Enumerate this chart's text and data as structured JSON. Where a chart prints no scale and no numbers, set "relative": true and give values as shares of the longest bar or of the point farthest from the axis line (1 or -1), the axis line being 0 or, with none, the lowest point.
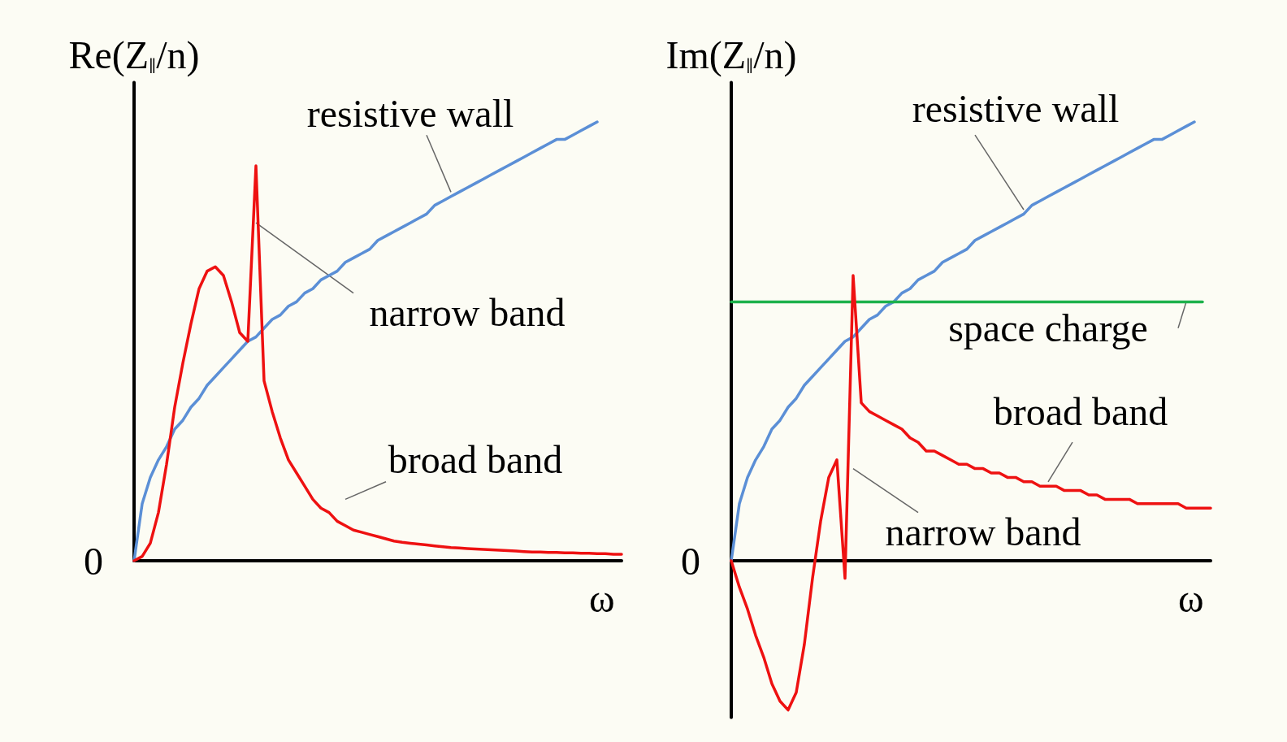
{
  "chart_data": [
    {
      "type": "line",
      "ylabel": "Re(Z$_{∥}$/n)",
      "xlabel": "ω",
      "relative": true,
      "legend": false,
      "grid": false,
      "marker": "none",
      "line_style": "solid",
      "categories": [
        null,
        null,
        null,
        null,
        null,
        null,
        null,
        null,
        null,
        null,
        null,
        null,
        null,
        null,
        null,
        null,
        null,
        null,
        null,
        null,
        null,
        null,
        null,
        null,
        null,
        null,
        null,
        null,
        null,
        null,
        null,
        null,
        null,
        null,
        null,
        null,
        null,
        null,
        null,
        null,
        null,
        null,
        null,
        null,
        null,
        null,
        null,
        null,
        null,
        null,
        null,
        null,
        null,
        null,
        null,
        null,
        null,
        null,
        null,
        null,
        null
      ],
      "series": [
        {
          "name": "resistive wall",
          "color": "#5b8fd6",
          "values": [
            0,
            0.13,
            0.19,
            0.23,
            0.26,
            0.3,
            0.32,
            0.35,
            0.37,
            0.4,
            0.42,
            0.44,
            0.46,
            0.48,
            0.5,
            0.51,
            0.53,
            0.55,
            0.56,
            0.58,
            0.59,
            0.61,
            0.62,
            0.64,
            0.65,
            0.66,
            0.68,
            0.69,
            0.7,
            0.71,
            0.73,
            0.74,
            0.75,
            0.76,
            0.77,
            0.78,
            0.79,
            0.81,
            0.82,
            0.83,
            0.84,
            0.85,
            0.86,
            0.87,
            0.88,
            0.89,
            0.9,
            0.91,
            0.92,
            0.93,
            0.94,
            0.95,
            0.96,
            0.96,
            0.97,
            0.98,
            0.99,
            1,
            null,
            null,
            null
          ]
        },
        {
          "color": "#ee1111",
          "values": [
            0,
            0.01,
            0.04,
            0.11,
            0.22,
            0.35,
            0.45,
            0.54,
            0.62,
            0.66,
            0.67,
            0.65,
            0.59,
            0.52,
            0.5,
            0.9,
            0.41,
            0.34,
            0.28,
            0.23,
            0.2,
            0.17,
            0.14,
            0.12,
            0.11,
            0.09,
            0.08,
            0.07,
            0.065,
            0.06,
            0.055,
            0.05,
            0.045,
            0.042,
            0.04,
            0.038,
            0.036,
            0.034,
            0.032,
            0.03,
            0.029,
            0.028,
            0.027,
            0.026,
            0.025,
            0.024,
            0.023,
            0.022,
            0.021,
            0.02,
            0.02,
            0.019,
            0.019,
            0.018,
            0.018,
            0.017,
            0.017,
            0.016,
            0.016,
            0.015,
            0.015
          ]
        }
      ],
      "annotations": [
        "narrow band",
        "broad band",
        "0"
      ]
    },
    {
      "type": "line",
      "ylabel": "Im(Z$_{∥}$/n)",
      "xlabel": "ω",
      "relative": true,
      "legend": false,
      "grid": false,
      "marker": "none",
      "line_style": "solid",
      "categories": [
        null,
        null,
        null,
        null,
        null,
        null,
        null,
        null,
        null,
        null,
        null,
        null,
        null,
        null,
        null,
        null,
        null,
        null,
        null,
        null,
        null,
        null,
        null,
        null,
        null,
        null,
        null,
        null,
        null,
        null,
        null,
        null,
        null,
        null,
        null,
        null,
        null,
        null,
        null,
        null,
        null,
        null,
        null,
        null,
        null,
        null,
        null,
        null,
        null,
        null,
        null,
        null,
        null,
        null,
        null,
        null,
        null,
        null,
        null,
        null
      ],
      "series": [
        {
          "name": "resistive wall",
          "color": "#5b8fd6",
          "values": [
            0,
            0.13,
            0.19,
            0.23,
            0.26,
            0.3,
            0.32,
            0.35,
            0.37,
            0.4,
            0.42,
            0.44,
            0.46,
            0.48,
            0.5,
            0.51,
            0.53,
            0.55,
            0.56,
            0.58,
            0.59,
            0.61,
            0.62,
            0.64,
            0.65,
            0.66,
            0.68,
            0.69,
            0.7,
            0.71,
            0.73,
            0.74,
            0.75,
            0.76,
            0.77,
            0.78,
            0.79,
            0.81,
            0.82,
            0.83,
            0.84,
            0.85,
            0.86,
            0.87,
            0.88,
            0.89,
            0.9,
            0.91,
            0.92,
            0.93,
            0.94,
            0.95,
            0.96,
            0.96,
            0.97,
            0.98,
            0.99,
            1,
            null,
            null
          ]
        },
        {
          "name": "space charge",
          "color": "#1db14b",
          "values": [
            0.59,
            0.59,
            0.59,
            0.59,
            0.59,
            0.59,
            0.59,
            0.59,
            0.59,
            0.59,
            0.59,
            0.59,
            0.59,
            0.59,
            0.59,
            0.59,
            0.59,
            0.59,
            0.59,
            0.59,
            0.59,
            0.59,
            0.59,
            0.59,
            0.59,
            0.59,
            0.59,
            0.59,
            0.59,
            0.59,
            0.59,
            0.59,
            0.59,
            0.59,
            0.59,
            0.59,
            0.59,
            0.59,
            0.59,
            0.59,
            0.59,
            0.59,
            0.59,
            0.59,
            0.59,
            0.59,
            0.59,
            0.59,
            0.59,
            0.59,
            0.59,
            0.59,
            0.59,
            0.59,
            0.59,
            0.59,
            0.59,
            0.59,
            0.59,
            null
          ]
        },
        {
          "color": "#ee1111",
          "values": [
            0,
            -0.06,
            -0.11,
            -0.17,
            -0.22,
            -0.28,
            -0.32,
            -0.34,
            -0.3,
            -0.19,
            -0.04,
            0.09,
            0.19,
            0.23,
            -0.04,
            0.65,
            0.36,
            0.34,
            0.33,
            0.32,
            0.31,
            0.3,
            0.28,
            0.27,
            0.25,
            0.25,
            0.24,
            0.23,
            0.22,
            0.22,
            0.21,
            0.21,
            0.2,
            0.2,
            0.19,
            0.19,
            0.18,
            0.18,
            0.17,
            0.17,
            0.17,
            0.16,
            0.16,
            0.16,
            0.15,
            0.15,
            0.14,
            0.14,
            0.14,
            0.14,
            0.13,
            0.13,
            0.13,
            0.13,
            0.13,
            0.13,
            0.12,
            0.12,
            0.12,
            0.12
          ]
        }
      ],
      "annotations": [
        "broad band",
        "narrow band",
        "0"
      ]
    }
  ]
}
